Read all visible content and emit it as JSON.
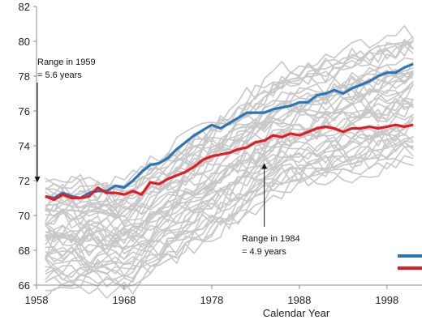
{
  "chart_data": {
    "type": "line",
    "title": "",
    "xlabel": "Calendar Year",
    "ylabel": "",
    "xlim": [
      1958,
      2002
    ],
    "ylim": [
      66,
      82
    ],
    "x_ticks": [
      1958,
      1968,
      1978,
      1988,
      1998
    ],
    "y_ticks": [
      66,
      68,
      70,
      72,
      74,
      76,
      78,
      80,
      82
    ],
    "grid": false,
    "legend": "right",
    "annotations": [
      {
        "lines": [
          "Range in 1959",
          "= 5.6 years"
        ],
        "arrow_at": {
          "x": 1959,
          "y": 71.9
        }
      },
      {
        "lines": [
          "Range in 1984",
          "= 4.9 years"
        ],
        "arrow_at": {
          "x": 1984,
          "y": 73.0
        }
      }
    ],
    "highlight_series": [
      {
        "color": "#2e75b6",
        "x": [
          1959,
          1960,
          1961,
          1962,
          1963,
          1964,
          1965,
          1966,
          1967,
          1968,
          1969,
          1970,
          1971,
          1972,
          1973,
          1974,
          1975,
          1976,
          1977,
          1978,
          1979,
          1980,
          1981,
          1982,
          1983,
          1984,
          1985,
          1986,
          1987,
          1988,
          1989,
          1990,
          1991,
          1992,
          1993,
          1994,
          1995,
          1996,
          1997,
          1998,
          1999,
          2000,
          2001
        ],
        "values": [
          71.1,
          71.0,
          71.3,
          71.1,
          71.0,
          71.3,
          71.4,
          71.4,
          71.7,
          71.6,
          72.0,
          72.5,
          72.9,
          73.0,
          73.3,
          73.8,
          74.2,
          74.6,
          74.9,
          75.2,
          75.0,
          75.3,
          75.6,
          75.9,
          75.9,
          75.9,
          76.1,
          76.2,
          76.3,
          76.5,
          76.5,
          76.9,
          77.0,
          77.2,
          77.0,
          77.3,
          77.5,
          77.7,
          78.0,
          78.2,
          78.2,
          78.5,
          78.7
        ]
      },
      {
        "color": "#e31b23",
        "x": [
          1959,
          1960,
          1961,
          1962,
          1963,
          1964,
          1965,
          1966,
          1967,
          1968,
          1969,
          1970,
          1971,
          1972,
          1973,
          1974,
          1975,
          1976,
          1977,
          1978,
          1979,
          1980,
          1981,
          1982,
          1983,
          1984,
          1985,
          1986,
          1987,
          1988,
          1989,
          1990,
          1991,
          1992,
          1993,
          1994,
          1995,
          1996,
          1997,
          1998,
          1999,
          2000,
          2001
        ],
        "values": [
          71.1,
          70.9,
          71.2,
          71.0,
          71.0,
          71.1,
          71.6,
          71.3,
          71.3,
          71.2,
          71.4,
          71.2,
          71.9,
          71.8,
          72.1,
          72.3,
          72.5,
          72.8,
          73.2,
          73.4,
          73.5,
          73.6,
          73.8,
          73.9,
          74.2,
          74.3,
          74.6,
          74.5,
          74.7,
          74.6,
          74.8,
          75.0,
          75.1,
          75.0,
          74.8,
          75.0,
          75.0,
          75.1,
          75.0,
          75.1,
          75.2,
          75.1,
          75.2
        ]
      }
    ],
    "background_series": {
      "color": "#c8c8c8",
      "count": 48,
      "x_start": 1959,
      "x_end": 2001,
      "start_range": [
        66.0,
        72.0
      ],
      "end_range": [
        73.2,
        80.3
      ],
      "wiggle": 0.55
    }
  },
  "colors": {
    "axis": "#8c8c8c",
    "background": "#ffffff"
  }
}
